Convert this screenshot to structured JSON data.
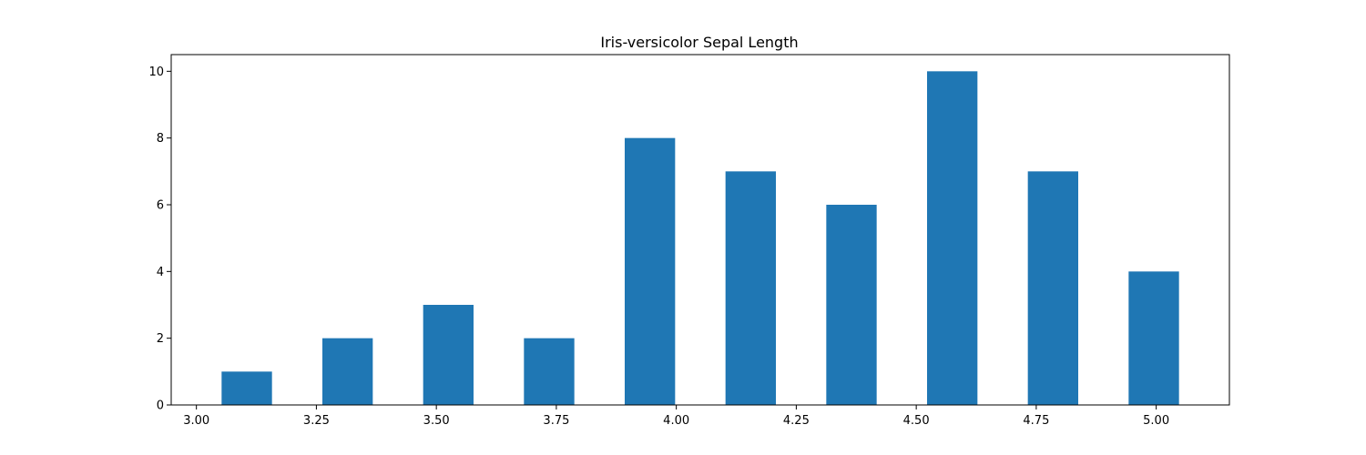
{
  "chart_data": {
    "type": "bar",
    "title": "Iris-versicolor Sepal Length",
    "xlabel": "",
    "ylabel": "",
    "x": [
      3.105,
      3.315,
      3.525,
      3.735,
      3.945,
      4.155,
      4.365,
      4.575,
      4.785,
      4.995
    ],
    "values": [
      1,
      2,
      3,
      2,
      8,
      7,
      6,
      10,
      7,
      4
    ],
    "bar_width": 0.105,
    "xlim": [
      2.9475,
      5.1525
    ],
    "ylim": [
      0,
      10.5
    ],
    "xticks": [
      "3.00",
      "3.25",
      "3.50",
      "3.75",
      "4.00",
      "4.25",
      "4.50",
      "4.75",
      "5.00"
    ],
    "yticks": [
      "0",
      "2",
      "4",
      "6",
      "8",
      "10"
    ],
    "grid": false,
    "bar_color": "#1f77b4"
  }
}
